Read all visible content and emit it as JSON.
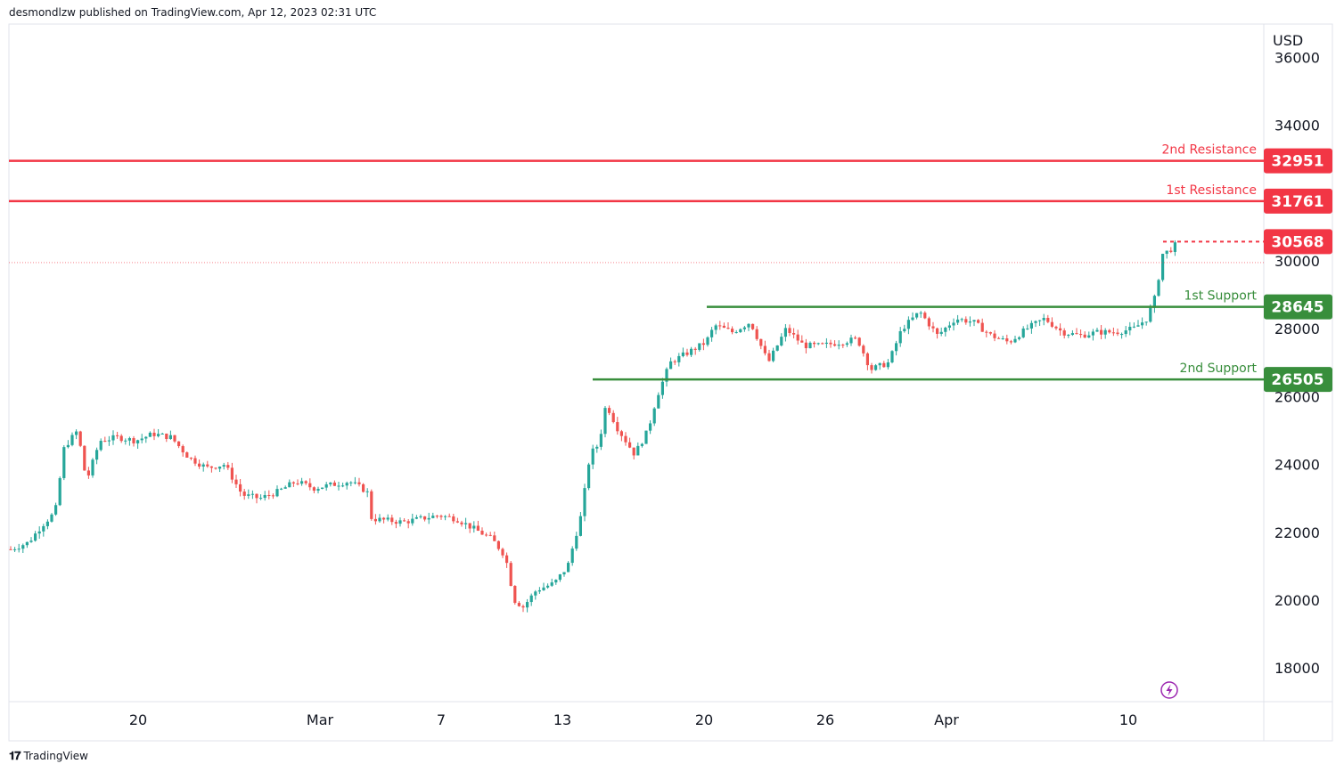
{
  "header": {
    "publisher_line": "desmondlzw published on TradingView.com, Apr 12, 2023 02:31 UTC"
  },
  "footer": {
    "logo_text": "TradingView"
  },
  "chart_data": {
    "type": "candlestick",
    "currency": "USD",
    "ylim": [
      17000,
      36600
    ],
    "y_ticks": [
      18000,
      20000,
      22000,
      24000,
      26000,
      28000,
      30000,
      34000,
      36000
    ],
    "x_tick_labels": [
      "20",
      "Mar",
      "7",
      "13",
      "20",
      "26",
      "Apr",
      "10"
    ],
    "last_price": 30568,
    "colors": {
      "up": "#26a69a",
      "down": "#ef5350",
      "resistance": "#f23645",
      "support": "#388e3c",
      "current": "#f23645"
    },
    "levels": [
      {
        "name": "2nd Resistance",
        "value": 32951,
        "type": "resistance"
      },
      {
        "name": "1st Resistance",
        "value": 31761,
        "type": "resistance"
      },
      {
        "name": "1st Support",
        "value": 28645,
        "type": "support"
      },
      {
        "name": "2nd Support",
        "value": 26505,
        "type": "support"
      }
    ],
    "price_path": [
      [
        0,
        21500
      ],
      [
        20,
        21700
      ],
      [
        35,
        22200
      ],
      [
        50,
        22600
      ],
      [
        60,
        24500
      ],
      [
        75,
        25000
      ],
      [
        85,
        23500
      ],
      [
        100,
        24700
      ],
      [
        120,
        24800
      ],
      [
        140,
        24700
      ],
      [
        160,
        24900
      ],
      [
        180,
        24800
      ],
      [
        200,
        24200
      ],
      [
        220,
        23900
      ],
      [
        240,
        24000
      ],
      [
        260,
        23100
      ],
      [
        280,
        23000
      ],
      [
        300,
        23200
      ],
      [
        320,
        23500
      ],
      [
        340,
        23300
      ],
      [
        360,
        23400
      ],
      [
        380,
        23500
      ],
      [
        400,
        23200
      ],
      [
        405,
        22400
      ],
      [
        440,
        22300
      ],
      [
        480,
        22500
      ],
      [
        500,
        22400
      ],
      [
        520,
        22100
      ],
      [
        540,
        21800
      ],
      [
        555,
        21300
      ],
      [
        565,
        20000
      ],
      [
        575,
        19800
      ],
      [
        590,
        20300
      ],
      [
        610,
        20500
      ],
      [
        625,
        21000
      ],
      [
        640,
        22500
      ],
      [
        650,
        24300
      ],
      [
        660,
        24600
      ],
      [
        668,
        25800
      ],
      [
        680,
        25100
      ],
      [
        700,
        24300
      ],
      [
        715,
        25000
      ],
      [
        725,
        26000
      ],
      [
        740,
        27000
      ],
      [
        760,
        27300
      ],
      [
        780,
        27600
      ],
      [
        790,
        28100
      ],
      [
        810,
        27900
      ],
      [
        830,
        28200
      ],
      [
        850,
        27000
      ],
      [
        870,
        28000
      ],
      [
        890,
        27500
      ],
      [
        910,
        27500
      ],
      [
        930,
        27600
      ],
      [
        950,
        27700
      ],
      [
        965,
        26800
      ],
      [
        985,
        27000
      ],
      [
        1000,
        28000
      ],
      [
        1020,
        28500
      ],
      [
        1040,
        27800
      ],
      [
        1060,
        28300
      ],
      [
        1080,
        28200
      ],
      [
        1100,
        27800
      ],
      [
        1120,
        27600
      ],
      [
        1140,
        28000
      ],
      [
        1160,
        28300
      ],
      [
        1180,
        27900
      ],
      [
        1200,
        27800
      ],
      [
        1220,
        27900
      ],
      [
        1240,
        27900
      ],
      [
        1260,
        28000
      ],
      [
        1275,
        28300
      ],
      [
        1285,
        29000
      ],
      [
        1292,
        30200
      ],
      [
        1300,
        30300
      ],
      [
        1308,
        30500
      ],
      [
        1312,
        29950
      ]
    ]
  }
}
